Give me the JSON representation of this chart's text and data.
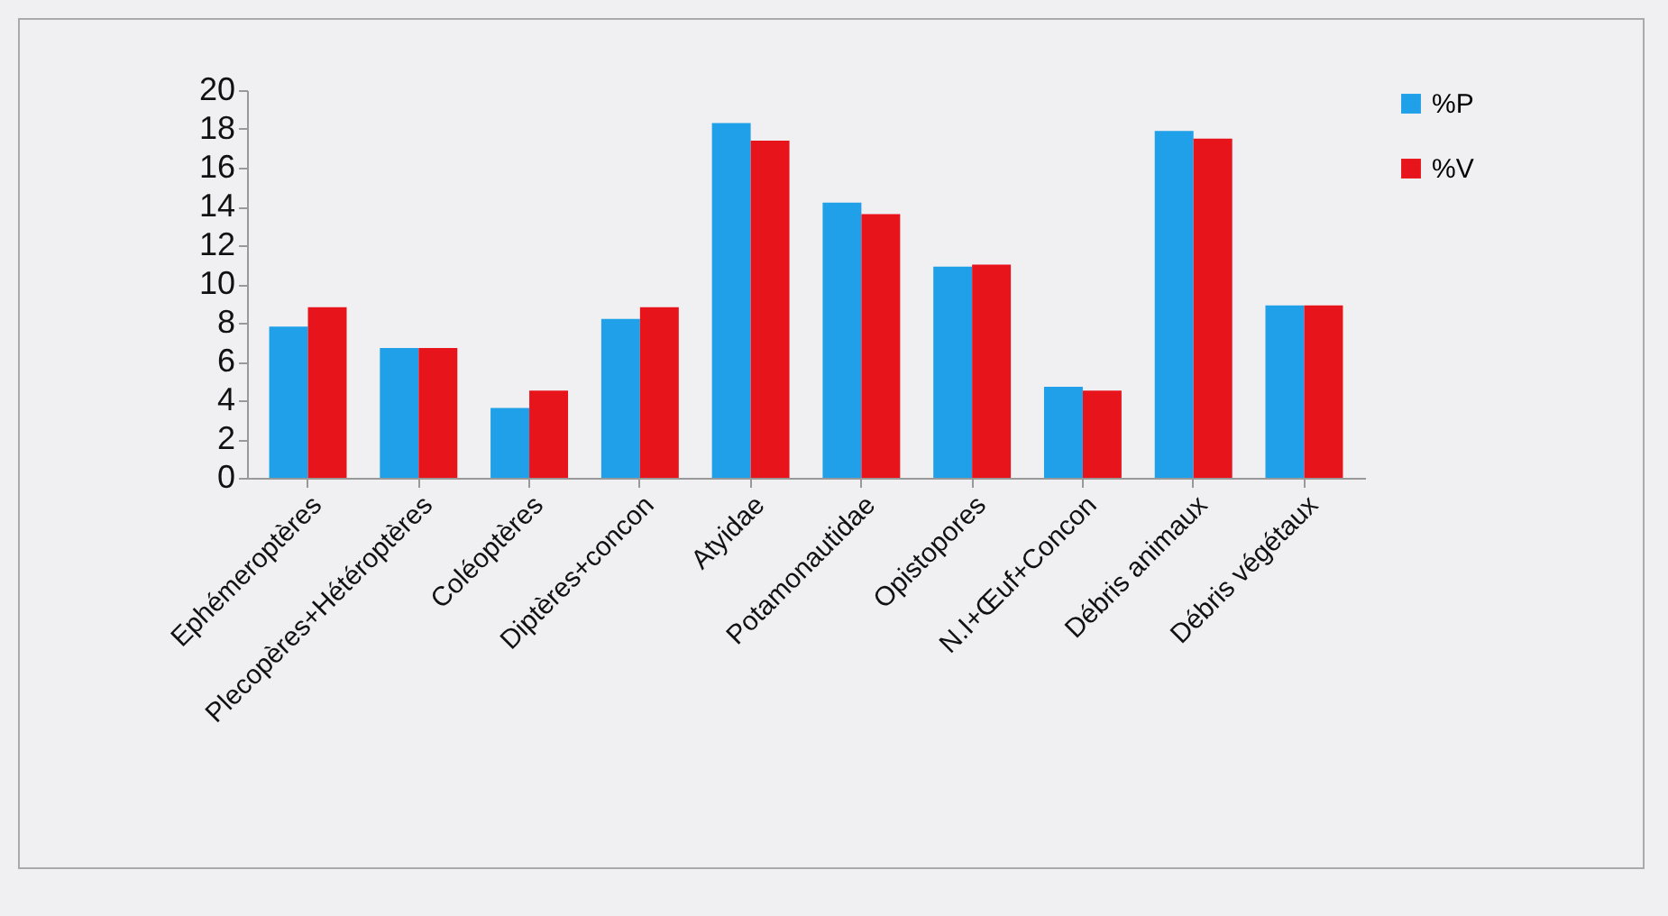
{
  "chart_data": {
    "type": "bar",
    "categories": [
      "Ephémeroptères",
      "Plecopères+Hétéroptères",
      "Coléoptères",
      "Diptères+concon",
      "Atyidae",
      "Potamonautidae",
      "Opistopores",
      "N.I+Œuf+Concon",
      "Débris animaux",
      "Débris végétaux"
    ],
    "series": [
      {
        "name": "%P",
        "color": "#1fa0e8",
        "values": [
          7.8,
          6.7,
          3.6,
          8.2,
          18.3,
          14.2,
          10.9,
          4.7,
          17.9,
          8.9
        ]
      },
      {
        "name": "%V",
        "color": "#e8141c",
        "values": [
          8.8,
          6.7,
          4.5,
          8.8,
          17.4,
          13.6,
          11.0,
          4.5,
          17.5,
          8.9
        ]
      }
    ],
    "ylim": [
      0,
      20
    ],
    "yticks": [
      0,
      2,
      4,
      6,
      8,
      10,
      12,
      14,
      16,
      18,
      20
    ],
    "grid": false,
    "legend": "right"
  }
}
